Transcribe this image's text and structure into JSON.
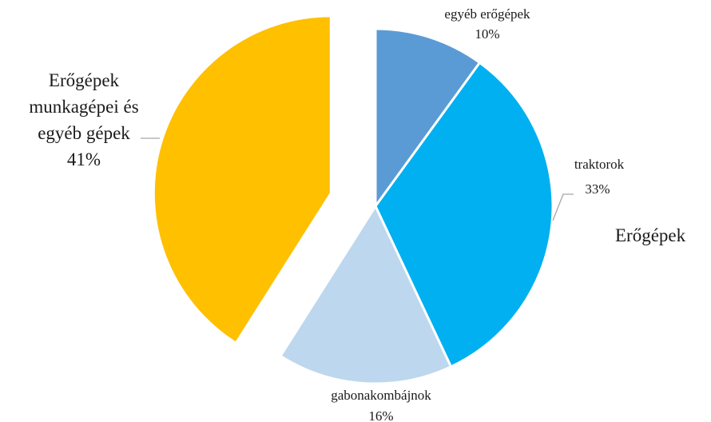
{
  "chart_data": {
    "type": "pie",
    "title": "",
    "slices": [
      {
        "label": "egyéb erőgépek",
        "value": 10,
        "value_label": "10%",
        "color": "#5b9bd5"
      },
      {
        "label": "traktorok",
        "value": 33,
        "value_label": "33%",
        "color": "#00b0f0"
      },
      {
        "label": "gabonakombájnok",
        "value": 16,
        "value_label": "16%",
        "color": "#bdd7ee"
      },
      {
        "label_lines": [
          "Erőgépek",
          "munkagépei és",
          "egyéb gépek"
        ],
        "label": "Erőgépek munkagépei és egyéb gépek",
        "value": 41,
        "value_label": "41%",
        "color": "#ffc000",
        "exploded": true
      }
    ],
    "side_label": "Erőgépek"
  }
}
